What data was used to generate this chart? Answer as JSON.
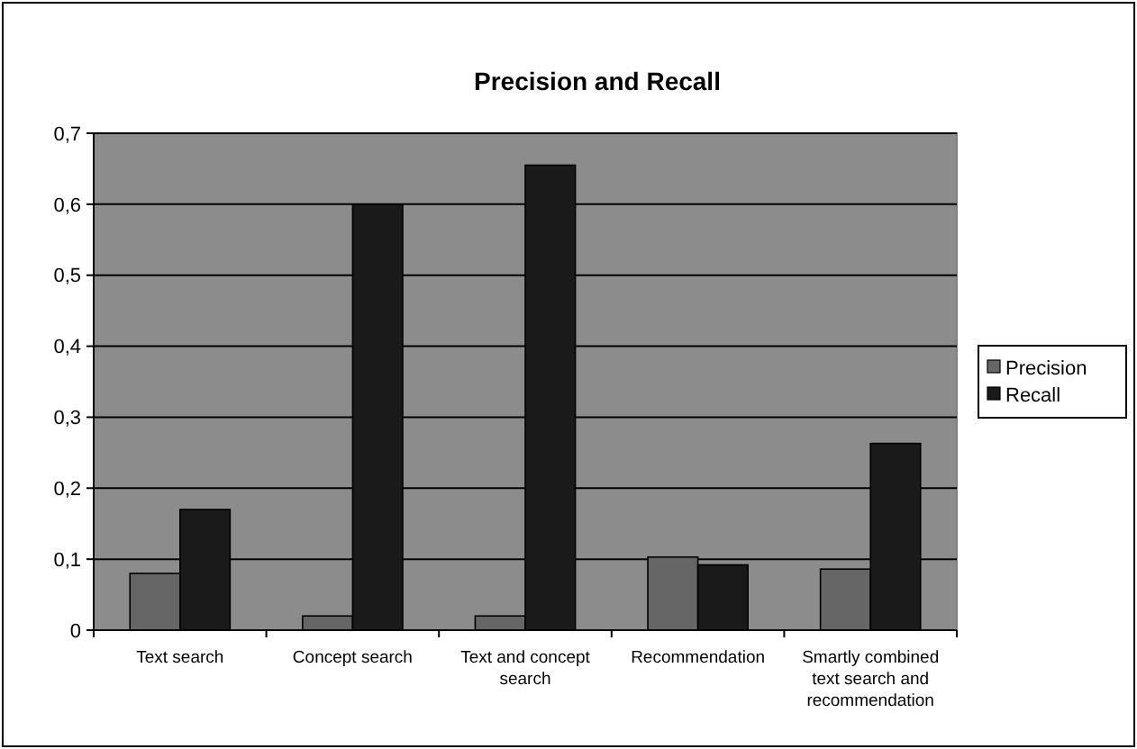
{
  "chart_data": {
    "type": "bar",
    "title": "Precision and Recall",
    "categories": [
      "Text search",
      "Concept search",
      "Text and concept search",
      "Recommendation",
      "Smartly combined text search and recommendation"
    ],
    "series": [
      {
        "name": "Precision",
        "color": "#666666",
        "values": [
          0.08,
          0.02,
          0.02,
          0.103,
          0.086
        ]
      },
      {
        "name": "Recall",
        "color": "#1a1a1a",
        "values": [
          0.17,
          0.6,
          0.655,
          0.092,
          0.263
        ]
      }
    ],
    "ylim": [
      0,
      0.7
    ],
    "yticks": [
      0,
      {
        "value": 0.1,
        "label": "0,1"
      },
      {
        "value": 0.2,
        "label": "0,2"
      },
      {
        "value": 0.3,
        "label": "0,3"
      },
      {
        "value": 0.4,
        "label": "0,4"
      },
      {
        "value": 0.5,
        "label": "0,5"
      },
      {
        "value": 0.6,
        "label": "0,6"
      },
      {
        "value": 0.7,
        "label": "0,7"
      }
    ],
    "grid": "y",
    "legend": "right"
  }
}
